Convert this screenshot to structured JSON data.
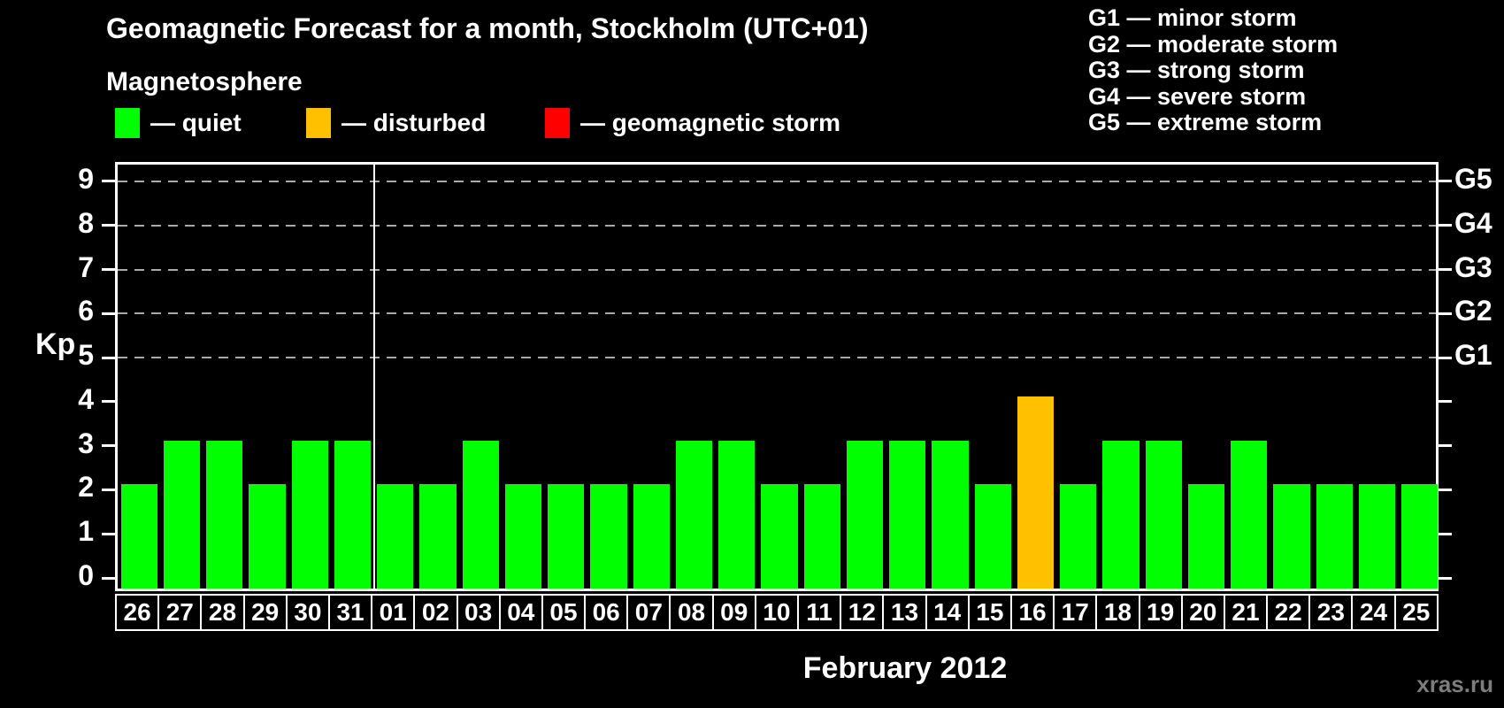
{
  "title": "Geomagnetic Forecast for a month, Stockholm (UTC+01)",
  "subtitle": "Magnetosphere",
  "legend": {
    "items": [
      {
        "key": "quiet",
        "label": "— quiet",
        "color": "#00FF00"
      },
      {
        "key": "disturbed",
        "label": "— disturbed",
        "color": "#FFC000"
      },
      {
        "key": "storm",
        "label": "— geomagnetic storm",
        "color": "#FF0000"
      }
    ]
  },
  "storm_scale_legend": [
    "G1 — minor storm",
    "G2 — moderate storm",
    "G3 — strong storm",
    "G4 — severe storm",
    "G5 — extreme storm"
  ],
  "watermark": "xras.ru",
  "chart_data": {
    "type": "bar",
    "title": "Geomagnetic Forecast for a month, Stockholm (UTC+01)",
    "xlabel": "February 2012",
    "ylabel": "Kp",
    "ylim": [
      0,
      9
    ],
    "yticks": [
      0,
      1,
      2,
      3,
      4,
      5,
      6,
      7,
      8,
      9
    ],
    "gridlines_at_kp": [
      5,
      6,
      7,
      8,
      9
    ],
    "right_axis": [
      {
        "kp": 5,
        "label": "G1"
      },
      {
        "kp": 6,
        "label": "G2"
      },
      {
        "kp": 7,
        "label": "G3"
      },
      {
        "kp": 8,
        "label": "G4"
      },
      {
        "kp": 9,
        "label": "G5"
      }
    ],
    "categories": [
      "26",
      "27",
      "28",
      "29",
      "30",
      "31",
      "01",
      "02",
      "03",
      "04",
      "05",
      "06",
      "07",
      "08",
      "09",
      "10",
      "11",
      "12",
      "13",
      "14",
      "15",
      "16",
      "17",
      "18",
      "19",
      "20",
      "21",
      "22",
      "23",
      "24",
      "25"
    ],
    "values": [
      2,
      3,
      3,
      2,
      3,
      3,
      2,
      2,
      3,
      2,
      2,
      2,
      2,
      3,
      3,
      2,
      2,
      3,
      3,
      3,
      2,
      4,
      2,
      3,
      3,
      2,
      3,
      2,
      2,
      2,
      2
    ],
    "statuses": [
      "quiet",
      "quiet",
      "quiet",
      "quiet",
      "quiet",
      "quiet",
      "quiet",
      "quiet",
      "quiet",
      "quiet",
      "quiet",
      "quiet",
      "quiet",
      "quiet",
      "quiet",
      "quiet",
      "quiet",
      "quiet",
      "quiet",
      "quiet",
      "quiet",
      "disturbed",
      "quiet",
      "quiet",
      "quiet",
      "quiet",
      "quiet",
      "quiet",
      "quiet",
      "quiet",
      "quiet"
    ],
    "month_separator_after_category": "31",
    "colors": {
      "quiet": "#00FF00",
      "disturbed": "#FFC000",
      "storm": "#FF0000",
      "axis": "#FFFFFF",
      "grid": "#999999",
      "background": "#000000"
    }
  }
}
